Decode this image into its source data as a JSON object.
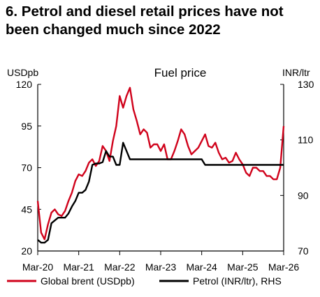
{
  "page": {
    "title": "6. Petrol and diesel retail prices have not\nbeen changed much since 2022"
  },
  "chart_data": {
    "type": "line",
    "title": "Fuel price",
    "ylabel_left": "USDpb",
    "ylabel_right": "INR/ltr",
    "ylim_left": [
      20,
      120
    ],
    "yticks_left": [
      20,
      45,
      70,
      95,
      120
    ],
    "ylim_right": [
      70,
      130
    ],
    "yticks_right": [
      70,
      90,
      110,
      130
    ],
    "xlim": [
      "2020-03",
      "2026-03"
    ],
    "xticks": [
      "Mar-20",
      "Mar-21",
      "Mar-22",
      "Mar-23",
      "Mar-24",
      "Mar-25",
      "Mar-26"
    ],
    "legend_position": "bottom",
    "grid": false,
    "series": [
      {
        "name": "Global brent (USDpb)",
        "axis": "left",
        "color": "#d0021b",
        "x": [
          "2020-03",
          "2020-04",
          "2020-05",
          "2020-06",
          "2020-07",
          "2020-08",
          "2020-09",
          "2020-10",
          "2020-11",
          "2020-12",
          "2021-01",
          "2021-02",
          "2021-03",
          "2021-04",
          "2021-05",
          "2021-06",
          "2021-07",
          "2021-08",
          "2021-09",
          "2021-10",
          "2021-11",
          "2021-12",
          "2022-01",
          "2022-02",
          "2022-03",
          "2022-04",
          "2022-05",
          "2022-06",
          "2022-07",
          "2022-08",
          "2022-09",
          "2022-10",
          "2022-11",
          "2022-12",
          "2023-01",
          "2023-02",
          "2023-03",
          "2023-04",
          "2023-05",
          "2023-06",
          "2023-07",
          "2023-08",
          "2023-09",
          "2023-10",
          "2023-11",
          "2023-12",
          "2024-01",
          "2024-02",
          "2024-03",
          "2024-04",
          "2024-05",
          "2024-06",
          "2024-07",
          "2024-08",
          "2024-09",
          "2024-10",
          "2024-11",
          "2024-12",
          "2025-01",
          "2025-02",
          "2025-03",
          "2025-04",
          "2025-05",
          "2025-06",
          "2025-07",
          "2025-08",
          "2025-09",
          "2025-10",
          "2025-11",
          "2025-12",
          "2026-01",
          "2026-02",
          "2026-03"
        ],
        "values": [
          50,
          31,
          27,
          36,
          43,
          45,
          42,
          41,
          44,
          50,
          55,
          62,
          66,
          65,
          68,
          73,
          75,
          71,
          74,
          83,
          80,
          74,
          86,
          95,
          113,
          106,
          113,
          118,
          105,
          98,
          90,
          93,
          91,
          82,
          84,
          84,
          80,
          84,
          75,
          75,
          80,
          86,
          93,
          90,
          83,
          78,
          80,
          82,
          86,
          90,
          83,
          82,
          85,
          79,
          75,
          76,
          73,
          74,
          79,
          75,
          72,
          67,
          65,
          70,
          70,
          68,
          68,
          65,
          65,
          63,
          63,
          70,
          95
        ]
      },
      {
        "name": "Petrol (INR/ltr), RHS",
        "axis": "right",
        "color": "#000000",
        "x": [
          "2020-03",
          "2020-04",
          "2020-05",
          "2020-06",
          "2020-07",
          "2020-08",
          "2020-09",
          "2020-10",
          "2020-11",
          "2020-12",
          "2021-01",
          "2021-02",
          "2021-03",
          "2021-04",
          "2021-05",
          "2021-06",
          "2021-07",
          "2021-08",
          "2021-09",
          "2021-10",
          "2021-11",
          "2021-12",
          "2022-01",
          "2022-02",
          "2022-03",
          "2022-04",
          "2022-05",
          "2022-06",
          "2022-07",
          "2022-08",
          "2022-09",
          "2022-10",
          "2022-11",
          "2022-12",
          "2023-01",
          "2023-02",
          "2023-03",
          "2023-04",
          "2023-05",
          "2023-06",
          "2023-07",
          "2023-08",
          "2023-09",
          "2023-10",
          "2023-11",
          "2023-12",
          "2024-01",
          "2024-02",
          "2024-03",
          "2024-04",
          "2024-05",
          "2024-06",
          "2024-07",
          "2024-08",
          "2024-09",
          "2024-10",
          "2024-11",
          "2024-12",
          "2025-01",
          "2025-02",
          "2025-03",
          "2025-04",
          "2025-05",
          "2025-06",
          "2025-07",
          "2025-08",
          "2025-09",
          "2025-10",
          "2025-11",
          "2025-12",
          "2026-01",
          "2026-02",
          "2026-03"
        ],
        "values": [
          74,
          73,
          73,
          74,
          80,
          81,
          82,
          82,
          82,
          83.5,
          86,
          88,
          91,
          91,
          92,
          95,
          101,
          101.5,
          101.5,
          102,
          106,
          104,
          104,
          101,
          101,
          109,
          106,
          103,
          103,
          103,
          103,
          103,
          103,
          103,
          103,
          103,
          103,
          103,
          103,
          103,
          103,
          103,
          103,
          103,
          103,
          103,
          103,
          103,
          103,
          101,
          101,
          101,
          101,
          101,
          101,
          101,
          101,
          101,
          101,
          101,
          101,
          101,
          101,
          101,
          101,
          101,
          101,
          101,
          101,
          101,
          101,
          101,
          101
        ]
      }
    ]
  }
}
